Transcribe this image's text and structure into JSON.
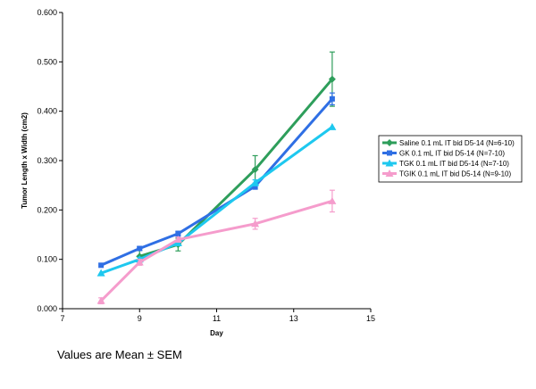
{
  "chart_data": {
    "type": "line",
    "xlabel": "Day",
    "ylabel": "Tumor Length x Width (cm2)",
    "xlim": [
      7,
      15
    ],
    "ylim": [
      0,
      0.6
    ],
    "xticks": [
      "7",
      "9",
      "11",
      "13",
      "15"
    ],
    "yticks": [
      "0.000",
      "0.100",
      "0.200",
      "0.300",
      "0.400",
      "0.500",
      "0.600"
    ],
    "x": [
      8,
      9,
      10,
      12,
      14
    ],
    "legend_position": "right",
    "grid": false,
    "series": [
      {
        "name": "Saline 0.1 mL IT bid D5-14 (N=6-10)",
        "color": "#2e9e5b",
        "marker": "diamond",
        "x": [
          9,
          10,
          12,
          14
        ],
        "values": [
          0.106,
          0.13,
          0.282,
          0.465
        ],
        "errors": [
          0.012,
          0.013,
          0.028,
          0.055
        ]
      },
      {
        "name": "GK 0.1 mL IT bid D5-14 (N=7-10)",
        "color": "#2f6fe4",
        "marker": "square",
        "x": [
          8,
          9,
          10,
          12,
          14
        ],
        "values": [
          0.088,
          0.122,
          0.152,
          0.248,
          0.425
        ],
        "errors": [
          0.0,
          0.003,
          0.005,
          0.006,
          0.012
        ]
      },
      {
        "name": "TGK 0.1 mL IT bid D5-14 (N=7-10)",
        "color": "#1ec8ef",
        "marker": "triangle",
        "x": [
          8,
          9,
          10,
          12,
          14
        ],
        "values": [
          0.072,
          0.1,
          0.133,
          0.255,
          0.368
        ],
        "errors": [
          0.0,
          0.004,
          0.005,
          0.006,
          0.0
        ]
      },
      {
        "name": "TGIK 0.1 mL IT bid D5-14 (N=9-10)",
        "color": "#f59ccc",
        "marker": "x",
        "x": [
          8,
          9,
          10,
          12,
          14
        ],
        "values": [
          0.016,
          0.094,
          0.14,
          0.172,
          0.218
        ],
        "errors": [
          0.006,
          0.006,
          0.005,
          0.011,
          0.022
        ]
      }
    ]
  },
  "footnote": "Values are Mean ± SEM"
}
